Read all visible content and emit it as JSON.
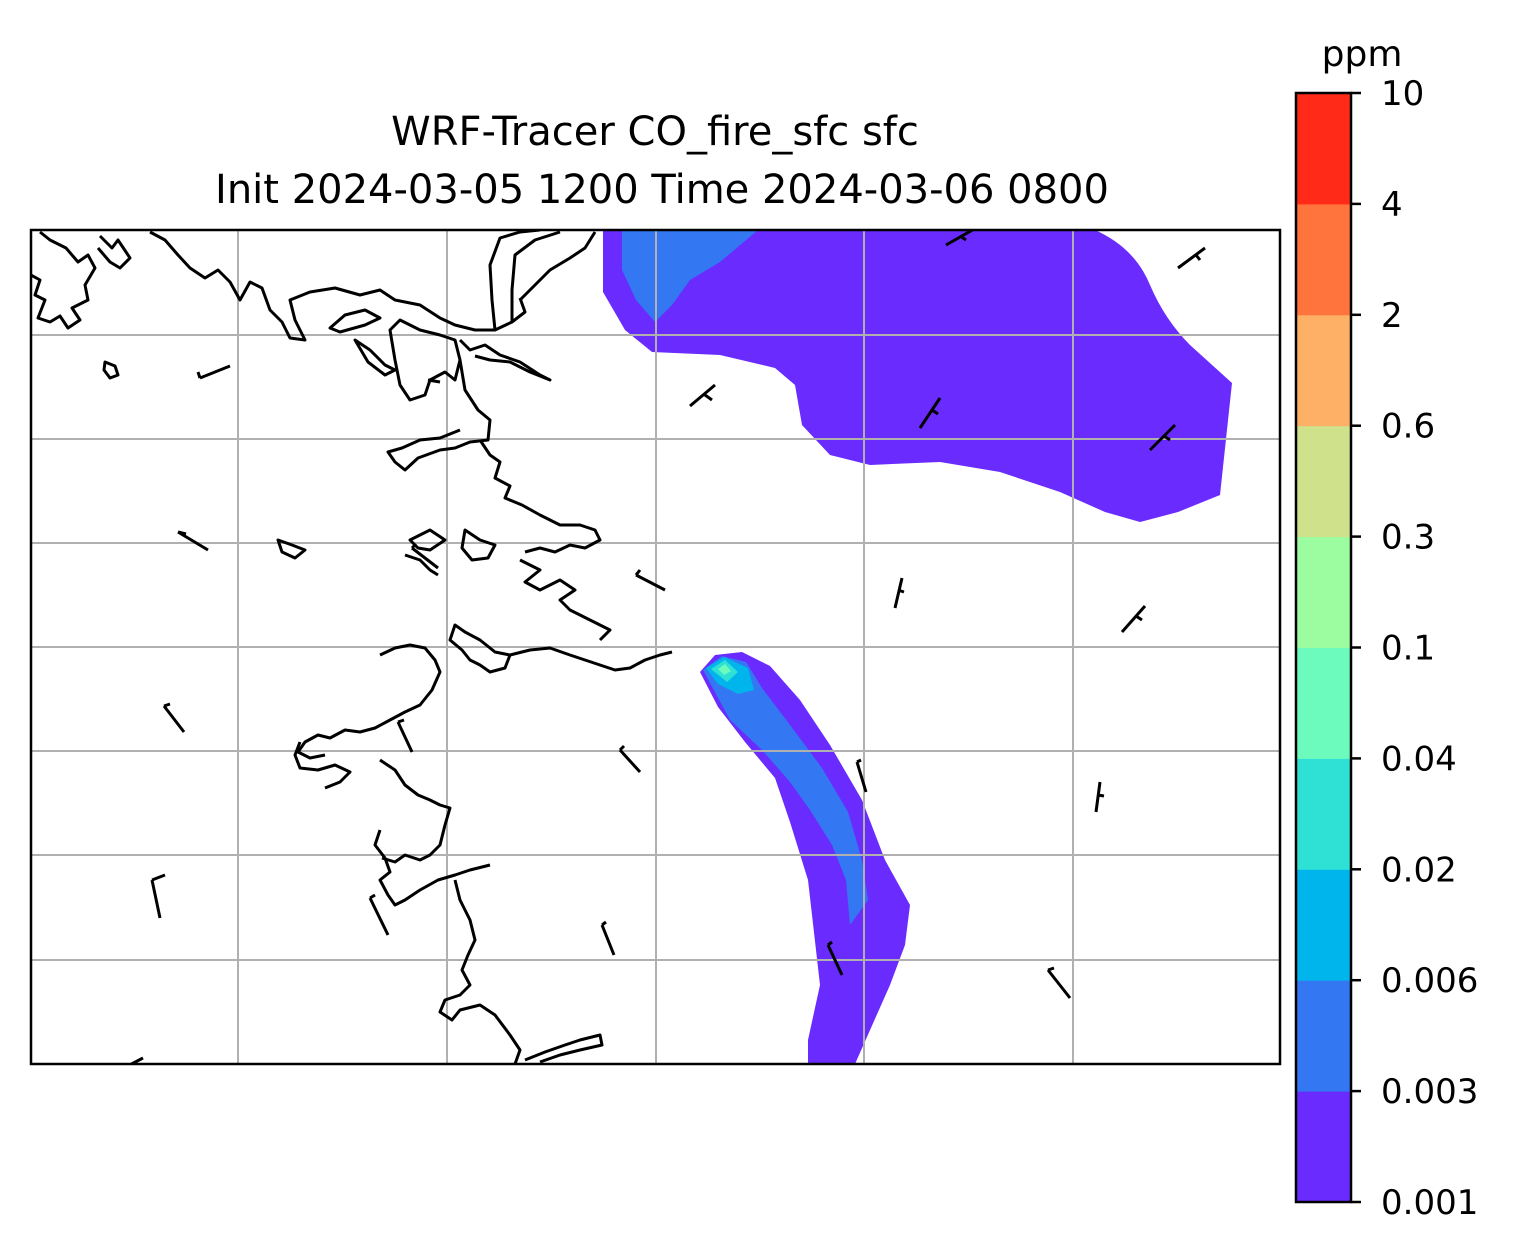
{
  "title_line1": "WRF-Tracer CO_fire_sfc sfc",
  "title_line2": "Init 2024-03-05 1200 Time 2024-03-06 0800",
  "colorbar": {
    "unit": "ppm",
    "levels": [
      "0.001",
      "0.003",
      "0.006",
      "0.02",
      "0.04",
      "0.1",
      "0.3",
      "0.6",
      "2",
      "4",
      "10"
    ],
    "colors": [
      "#6a2bff",
      "#3377f2",
      "#00b5ec",
      "#2fe0d5",
      "#6dfbbd",
      "#9cfda0",
      "#cfe18a",
      "#fdb066",
      "#ff733d",
      "#ff2b18"
    ]
  },
  "map": {
    "gridlines": true,
    "gridline_color": "#b0b0b0",
    "coastline_color": "#000000",
    "wind_barbs": true
  }
}
